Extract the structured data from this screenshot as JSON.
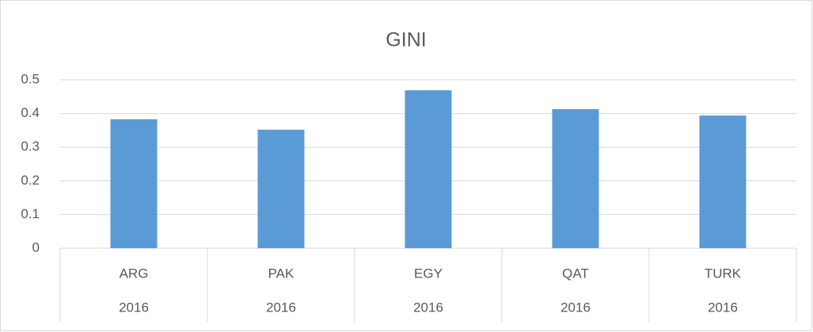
{
  "chart_data": {
    "type": "bar",
    "title": "GINI",
    "categories": [
      "ARG",
      "PAK",
      "EGY",
      "QAT",
      "TURK"
    ],
    "category_groups": [
      "2016",
      "2016",
      "2016",
      "2016",
      "2016"
    ],
    "values": [
      0.383,
      0.352,
      0.469,
      0.413,
      0.394
    ],
    "color": "#5b9bd5",
    "ylim": [
      0,
      0.5
    ],
    "yticks": [
      0,
      0.1,
      0.2,
      0.3,
      0.4,
      0.5
    ],
    "grid": true
  }
}
